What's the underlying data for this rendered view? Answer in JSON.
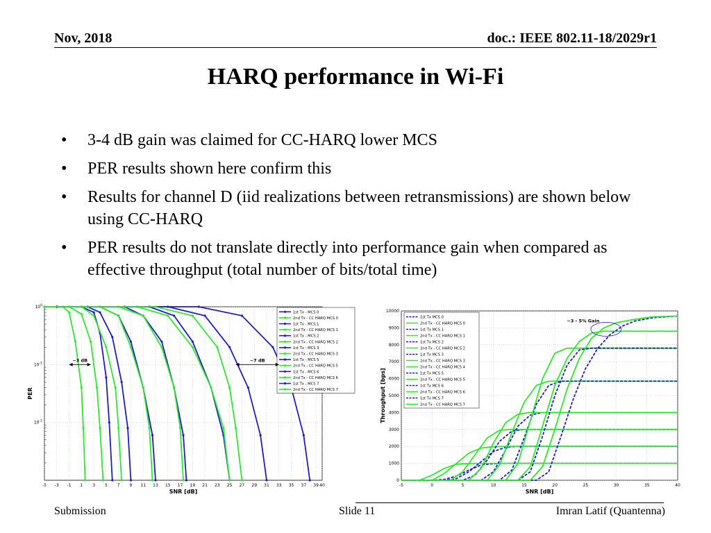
{
  "header": {
    "date": "Nov, 2018",
    "doc": "doc.: IEEE 802.11-18/2029r1"
  },
  "title": "HARQ performance in Wi-Fi",
  "bullets": [
    "3-4 dB gain was claimed for CC-HARQ lower MCS",
    "PER results shown here confirm this",
    "Results for channel D (iid realizations between retransmissions) are shown below using CC-HARQ",
    "PER results do not translate directly into performance gain when compared as effective throughput (total number of bits/total time)"
  ],
  "footer": {
    "left": "Submission",
    "center": "Slide 11",
    "right": "Imran Latif (Quantenna)"
  },
  "colors": {
    "first_tx": "#1c1cc8",
    "second_tx": "#2ee82e",
    "annotation": "#000000"
  },
  "chart_data": [
    {
      "type": "line",
      "xlabel": "SNR [dB]",
      "ylabel": "PER",
      "yscale": "log",
      "xlim": [
        -5,
        40
      ],
      "ylim": [
        0.001,
        1
      ],
      "x_ticks": [
        "-5",
        "-3",
        "-1",
        "1",
        "3",
        "5",
        "7",
        "9",
        "11",
        "13",
        "15",
        "17",
        "19",
        "21",
        "23",
        "25",
        "27",
        "29",
        "31",
        "33",
        "35",
        "37",
        "39",
        "40"
      ],
      "y_ticks": [
        "10^0",
        "10^-1",
        "10^-2"
      ],
      "grid": true,
      "legend_position": "top-right",
      "annotations": [
        {
          "text": "~3 dB",
          "x_from": -1,
          "x_to": 2.5,
          "y": 0.1
        },
        {
          "text": "~7 dB",
          "x_from": 26,
          "x_to": 33,
          "y": 0.1
        }
      ],
      "series": [
        {
          "name": "1st Tx - MCS 0",
          "tx": "first",
          "x": [
            -3,
            1,
            3,
            4,
            5,
            5.5,
            6
          ],
          "y": [
            1,
            1,
            0.8,
            0.35,
            0.06,
            0.01,
            0.001
          ]
        },
        {
          "name": "2nd Tx - CC HARQ MCS 0",
          "tx": "second",
          "x": [
            -5,
            -2,
            -1,
            0,
            1,
            1.3,
            1.6
          ],
          "y": [
            1,
            1,
            0.8,
            0.25,
            0.04,
            0.008,
            0.001
          ]
        },
        {
          "name": "1st Tx - MCS 1",
          "tx": "first",
          "x": [
            -3,
            2,
            4,
            6,
            7.5,
            8.5,
            9
          ],
          "y": [
            1,
            1,
            0.8,
            0.3,
            0.05,
            0.008,
            0.001
          ]
        },
        {
          "name": "2nd Tx - CC HARQ MCS 1",
          "tx": "second",
          "x": [
            -5,
            -1,
            1,
            2.5,
            3.5,
            4,
            4.5
          ],
          "y": [
            1,
            1,
            0.75,
            0.25,
            0.04,
            0.008,
            0.001
          ]
        },
        {
          "name": "1st Tx - MCS 2",
          "tx": "first",
          "x": [
            -3,
            4,
            7,
            9,
            11,
            12.5,
            13
          ],
          "y": [
            1,
            1,
            0.7,
            0.25,
            0.04,
            0.006,
            0.001
          ]
        },
        {
          "name": "2nd Tx - CC HARQ MCS 2",
          "tx": "second",
          "x": [
            -5,
            1,
            3,
            5,
            6.5,
            7,
            7.5
          ],
          "y": [
            1,
            1,
            0.7,
            0.2,
            0.04,
            0.008,
            0.001
          ]
        },
        {
          "name": "1st Tx - MCS 3",
          "tx": "first",
          "x": [
            -3,
            8,
            11,
            14,
            16,
            17.5,
            18
          ],
          "y": [
            1,
            1,
            0.7,
            0.25,
            0.04,
            0.006,
            0.001
          ]
        },
        {
          "name": "2nd Tx - CC HARQ MCS 3",
          "tx": "second",
          "x": [
            -5,
            4,
            7,
            9,
            11,
            12,
            12.5
          ],
          "y": [
            1,
            1,
            0.7,
            0.2,
            0.04,
            0.008,
            0.001
          ]
        },
        {
          "name": "1st Tx - MCS 5",
          "tx": "first",
          "x": [
            -3,
            12,
            16,
            19,
            22,
            24,
            25
          ],
          "y": [
            1,
            1,
            0.7,
            0.25,
            0.04,
            0.006,
            0.001
          ]
        },
        {
          "name": "2nd Tx - CC HARQ MCS 5",
          "tx": "second",
          "x": [
            -5,
            7,
            11,
            14,
            16,
            17,
            17.5
          ],
          "y": [
            1,
            1,
            0.7,
            0.2,
            0.04,
            0.008,
            0.001
          ]
        },
        {
          "name": "1st Tx - MCS 6",
          "tx": "first",
          "x": [
            -3,
            15,
            21,
            25,
            28,
            30,
            31
          ],
          "y": [
            1,
            1,
            0.7,
            0.2,
            0.04,
            0.006,
            0.001
          ]
        },
        {
          "name": "2nd Tx - CC HARQ MCS 6",
          "tx": "second",
          "x": [
            -5,
            10,
            15,
            19,
            22,
            24,
            25
          ],
          "y": [
            1,
            1,
            0.7,
            0.2,
            0.04,
            0.008,
            0.001
          ]
        },
        {
          "name": "1st Tx - MCS 7",
          "tx": "first",
          "x": [
            -3,
            20,
            27,
            32,
            35,
            37,
            38
          ],
          "y": [
            1,
            1,
            0.7,
            0.2,
            0.04,
            0.006,
            0.001
          ]
        },
        {
          "name": "2nd Tx - CC HARQ MCS 7",
          "tx": "second",
          "x": [
            -5,
            13,
            19,
            23,
            25,
            26,
            27
          ],
          "y": [
            1,
            1,
            0.7,
            0.2,
            0.04,
            0.008,
            0.001
          ]
        }
      ]
    },
    {
      "type": "line",
      "xlabel": "SNR [dB]",
      "ylabel": "Throughput [bps]",
      "xlim": [
        -5,
        40
      ],
      "ylim": [
        0,
        10000
      ],
      "x_ticks": [
        "-5",
        "0",
        "5",
        "10",
        "15",
        "20",
        "25",
        "30",
        "35",
        "40"
      ],
      "y_ticks": [
        "0",
        "1000",
        "2000",
        "3000",
        "4000",
        "5000",
        "6000",
        "7000",
        "8000",
        "9000",
        "10000"
      ],
      "grid": true,
      "legend_position": "top-left",
      "annotations": [
        {
          "text": "~3 - 5% Gain",
          "x": 28,
          "y": 9000
        }
      ],
      "series": [
        {
          "name": "1st Tx MCS 0",
          "tx": "first",
          "x": [
            -5,
            0,
            2,
            4,
            6,
            8,
            10,
            12,
            40
          ],
          "y": [
            0,
            0,
            50,
            250,
            600,
            900,
            980,
            1000,
            1000
          ]
        },
        {
          "name": "2nd Tx - CC HARQ MCS 0",
          "tx": "second",
          "x": [
            -5,
            -2,
            0,
            2,
            4,
            6,
            8,
            40
          ],
          "y": [
            0,
            0,
            300,
            700,
            950,
            990,
            1000,
            1000
          ]
        },
        {
          "name": "1st Tx MCS 1",
          "tx": "first",
          "x": [
            -5,
            2,
            4,
            6,
            8,
            10,
            12,
            14,
            40
          ],
          "y": [
            0,
            0,
            100,
            500,
            1100,
            1700,
            1950,
            2000,
            2000
          ]
        },
        {
          "name": "2nd Tx - CC HARQ MCS 1",
          "tx": "second",
          "x": [
            -5,
            0,
            2,
            4,
            6,
            8,
            10,
            12,
            40
          ],
          "y": [
            0,
            0,
            400,
            1000,
            1600,
            1900,
            1980,
            2000,
            2000
          ]
        },
        {
          "name": "1st Tx MCS 2",
          "tx": "first",
          "x": [
            -5,
            5,
            7,
            9,
            11,
            13,
            15,
            40
          ],
          "y": [
            0,
            0,
            300,
            1200,
            2300,
            2900,
            3000,
            3000
          ]
        },
        {
          "name": "2nd Tx - CC HARQ MCS 2",
          "tx": "second",
          "x": [
            -5,
            3,
            5,
            7,
            9,
            11,
            13,
            40
          ],
          "y": [
            0,
            0,
            500,
            1500,
            2500,
            2950,
            3000,
            3000
          ]
        },
        {
          "name": "1st Tx MCS 3",
          "tx": "first",
          "x": [
            -5,
            8,
            10,
            12,
            14,
            16,
            18,
            40
          ],
          "y": [
            0,
            0,
            500,
            1800,
            3200,
            3850,
            4000,
            4000
          ]
        },
        {
          "name": "2nd Tx - CC HARQ MCS 3",
          "tx": "second",
          "x": [
            -5,
            6,
            8,
            10,
            12,
            14,
            16,
            40
          ],
          "y": [
            0,
            0,
            700,
            2200,
            3400,
            3900,
            4000,
            4000
          ]
        },
        {
          "name": "2nd Tx - CC HARQ MCS 4",
          "tx": "second",
          "x": [
            -5,
            9,
            11,
            13,
            15,
            17,
            19,
            40
          ],
          "y": [
            0,
            0,
            900,
            2800,
            4600,
            5600,
            5850,
            5850
          ]
        },
        {
          "name": "1st Tx MCS 5",
          "tx": "first",
          "x": [
            -5,
            11,
            13,
            15,
            17,
            19,
            21,
            23,
            40
          ],
          "y": [
            0,
            0,
            600,
            2500,
            4500,
            5600,
            5850,
            5850,
            5850
          ]
        },
        {
          "name": "2nd Tx - CC HARQ MCS 5",
          "tx": "second",
          "x": [
            -5,
            12,
            14,
            16,
            18,
            20,
            22,
            40
          ],
          "y": [
            0,
            0,
            1000,
            3500,
            6000,
            7500,
            7800,
            7800
          ]
        },
        {
          "name": "1st Tx MCS 6",
          "tx": "first",
          "x": [
            -5,
            14,
            16,
            18,
            20,
            22,
            24,
            26,
            40
          ],
          "y": [
            0,
            0,
            500,
            2600,
            5000,
            6800,
            7700,
            7800,
            7800
          ]
        },
        {
          "name": "2nd Tx - CC HARQ MCS 6",
          "tx": "second",
          "x": [
            -5,
            14,
            16,
            18,
            20,
            22,
            24,
            26,
            28,
            40
          ],
          "y": [
            0,
            0,
            800,
            3200,
            5600,
            7200,
            8200,
            8700,
            8800,
            8800
          ]
        },
        {
          "name": "1st Tx MCS 7",
          "tx": "first",
          "x": [
            -5,
            17,
            19,
            21,
            23,
            25,
            27,
            29,
            31,
            33,
            36,
            40
          ],
          "y": [
            0,
            0,
            500,
            2600,
            4800,
            6600,
            7800,
            8600,
            9100,
            9400,
            9600,
            9700
          ]
        },
        {
          "name": "2nd Tx - CC HARQ MCS 7",
          "tx": "second",
          "x": [
            -5,
            16,
            18,
            20,
            22,
            24,
            26,
            28,
            30,
            33,
            36,
            40
          ],
          "y": [
            0,
            0,
            800,
            3000,
            5400,
            7200,
            8400,
            9000,
            9300,
            9500,
            9650,
            9700
          ]
        }
      ]
    }
  ]
}
